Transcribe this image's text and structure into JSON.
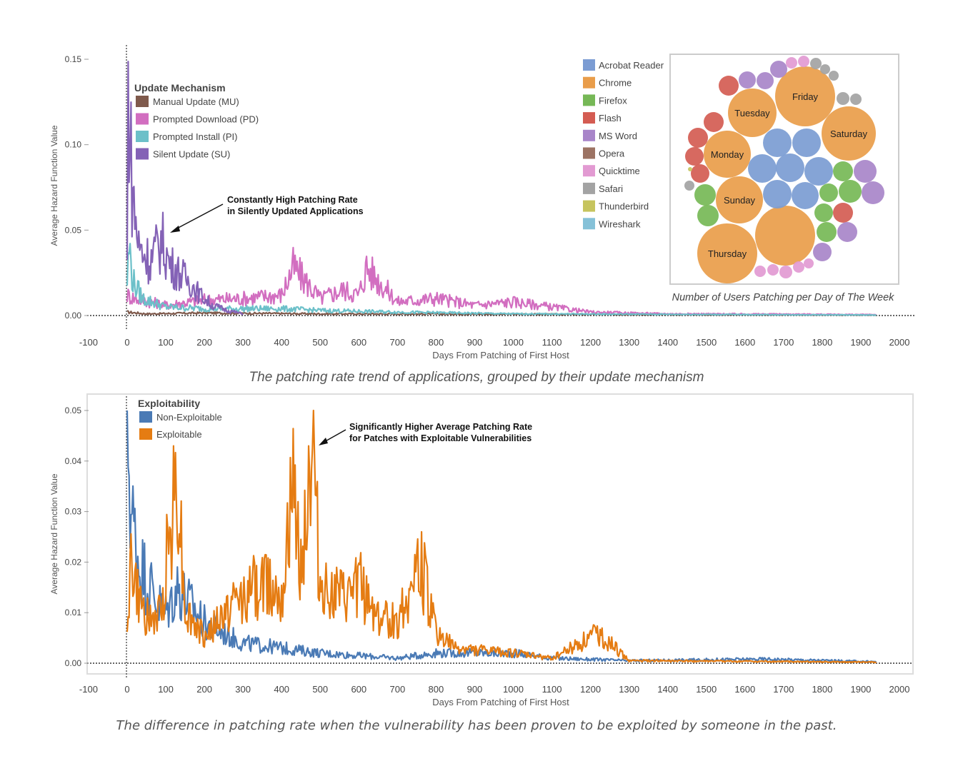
{
  "figure": {
    "caption_top": "The patching rate trend of applications, grouped by their update mechanism",
    "caption_bottom": "The difference in patching rate when the vulnerability has been proven to be exploited by someone in the past."
  },
  "chart_data": [
    {
      "type": "line",
      "ylabel": "Average Hazard Function Value",
      "xlabel": "Days From Patching of First Host",
      "xlim": [
        -100,
        2000
      ],
      "ylim": [
        0,
        0.15
      ],
      "x_ticks": [
        "-100",
        "0",
        "100",
        "200",
        "300",
        "400",
        "500",
        "600",
        "700",
        "800",
        "900",
        "1000",
        "1100",
        "1200",
        "1300",
        "1400",
        "1500",
        "1600",
        "1700",
        "1800",
        "1900",
        "2000"
      ],
      "y_ticks": [
        "0.00",
        "0.05",
        "0.10",
        "0.15"
      ],
      "legend_title": "Update Mechanism",
      "legend_position": "top-left",
      "annotation": [
        "Constantly High Patching Rate",
        "in Silently Updated Applications"
      ],
      "annotation_at": [
        100,
        0.047
      ],
      "series": [
        {
          "name": "Manual Update (MU)",
          "color": "#7f5a4c",
          "points": [
            [
              0,
              0.002
            ],
            [
              50,
              0.001
            ],
            [
              200,
              0.0015
            ],
            [
              500,
              0.001
            ],
            [
              1000,
              0.0008
            ],
            [
              1500,
              0.0005
            ],
            [
              1940,
              0.0003
            ]
          ]
        },
        {
          "name": "Prompted Download (PD)",
          "color": "#d26ec0",
          "points": [
            [
              0,
              0.012
            ],
            [
              20,
              0.01
            ],
            [
              100,
              0.006
            ],
            [
              200,
              0.009
            ],
            [
              300,
              0.01
            ],
            [
              400,
              0.012
            ],
            [
              430,
              0.028
            ],
            [
              500,
              0.01
            ],
            [
              560,
              0.015
            ],
            [
              600,
              0.012
            ],
            [
              620,
              0.028
            ],
            [
              700,
              0.008
            ],
            [
              800,
              0.01
            ],
            [
              900,
              0.006
            ],
            [
              1000,
              0.008
            ],
            [
              1100,
              0.005
            ],
            [
              1200,
              0.002
            ],
            [
              1400,
              0.001
            ],
            [
              1700,
              0.0008
            ],
            [
              1940,
              0.0005
            ]
          ]
        },
        {
          "name": "Prompted Install (PI)",
          "color": "#6cc0c9",
          "points": [
            [
              0,
              0.02
            ],
            [
              5,
              0.04
            ],
            [
              15,
              0.02
            ],
            [
              40,
              0.01
            ],
            [
              100,
              0.005
            ],
            [
              200,
              0.004
            ],
            [
              400,
              0.004
            ],
            [
              500,
              0.003
            ],
            [
              700,
              0.002
            ],
            [
              1000,
              0.001
            ],
            [
              1940,
              0.0003
            ]
          ]
        },
        {
          "name": "Silent Update (SU)",
          "color": "#8462b6",
          "points": [
            [
              0,
              0.03
            ],
            [
              3,
              0.15
            ],
            [
              8,
              0.1
            ],
            [
              15,
              0.07
            ],
            [
              30,
              0.04
            ],
            [
              60,
              0.032
            ],
            [
              90,
              0.044
            ],
            [
              110,
              0.03
            ],
            [
              160,
              0.02
            ],
            [
              190,
              0.012
            ],
            [
              220,
              0.006
            ],
            [
              260,
              0.003
            ],
            [
              300,
              0.001
            ]
          ]
        }
      ]
    },
    {
      "type": "line",
      "ylabel": "Average Hazard Function Value",
      "xlabel": "Days From Patching of First Host",
      "xlim": [
        -100,
        2000
      ],
      "ylim": [
        0,
        0.05
      ],
      "x_ticks": [
        "-100",
        "0",
        "100",
        "200",
        "300",
        "400",
        "500",
        "600",
        "700",
        "800",
        "900",
        "1000",
        "1100",
        "1200",
        "1300",
        "1400",
        "1500",
        "1600",
        "1700",
        "1800",
        "1900",
        "2000"
      ],
      "y_ticks": [
        "0.00",
        "0.01",
        "0.02",
        "0.03",
        "0.04",
        "0.05"
      ],
      "legend_title": "Exploitability",
      "legend_position": "top-left",
      "annotation": [
        "Significantly Higher Average Patching Rate",
        "for Patches with Exploitable Vulnerabilities"
      ],
      "annotation_at": [
        480,
        0.0435
      ],
      "series": [
        {
          "name": "Non-Exploitable",
          "color": "#4a7ab5",
          "points": [
            [
              0,
              0.05
            ],
            [
              10,
              0.03
            ],
            [
              30,
              0.02
            ],
            [
              80,
              0.012
            ],
            [
              100,
              0.01
            ],
            [
              130,
              0.015
            ],
            [
              200,
              0.008
            ],
            [
              300,
              0.004
            ],
            [
              400,
              0.003
            ],
            [
              500,
              0.002
            ],
            [
              600,
              0.0015
            ],
            [
              700,
              0.001
            ],
            [
              800,
              0.002
            ],
            [
              1000,
              0.002
            ],
            [
              1100,
              0.001
            ],
            [
              1300,
              0.0005
            ],
            [
              1650,
              0.0008
            ],
            [
              1940,
              0.0003
            ]
          ]
        },
        {
          "name": "Exploitable",
          "color": "#e57c12",
          "points": [
            [
              0,
              0.009
            ],
            [
              10,
              0.02
            ],
            [
              30,
              0.012
            ],
            [
              60,
              0.008
            ],
            [
              90,
              0.01
            ],
            [
              100,
              0.02
            ],
            [
              130,
              0.038
            ],
            [
              150,
              0.01
            ],
            [
              200,
              0.005
            ],
            [
              280,
              0.012
            ],
            [
              350,
              0.016
            ],
            [
              400,
              0.015
            ],
            [
              430,
              0.033
            ],
            [
              450,
              0.02
            ],
            [
              480,
              0.042
            ],
            [
              500,
              0.015
            ],
            [
              570,
              0.012
            ],
            [
              600,
              0.016
            ],
            [
              650,
              0.009
            ],
            [
              700,
              0.008
            ],
            [
              760,
              0.02
            ],
            [
              800,
              0.006
            ],
            [
              850,
              0.003
            ],
            [
              1000,
              0.002
            ],
            [
              1100,
              0.001
            ],
            [
              1220,
              0.006
            ],
            [
              1300,
              0.0005
            ],
            [
              1940,
              0.0002
            ]
          ]
        }
      ]
    }
  ],
  "bubble_inset": {
    "caption": "Number of Users Patching per Day of The Week",
    "legend": [
      {
        "name": "Acrobat Reader",
        "color": "#7b9cd3"
      },
      {
        "name": "Chrome",
        "color": "#e99d4a"
      },
      {
        "name": "Firefox",
        "color": "#76b856"
      },
      {
        "name": "Flash",
        "color": "#d45c52"
      },
      {
        "name": "MS Word",
        "color": "#a885c9"
      },
      {
        "name": "Opera",
        "color": "#9c7363"
      },
      {
        "name": "Quicktime",
        "color": "#e29ad2"
      },
      {
        "name": "Safari",
        "color": "#a3a3a3"
      },
      {
        "name": "Thunderbird",
        "color": "#c6c45e"
      },
      {
        "name": "Wireshark",
        "color": "#85c1d8"
      }
    ],
    "day_labels": [
      "Friday",
      "Tuesday",
      "Saturday",
      "Monday",
      "Sunday",
      "Thursday"
    ]
  }
}
